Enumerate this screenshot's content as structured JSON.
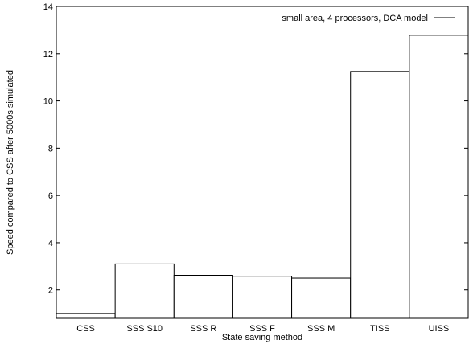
{
  "chart_data": {
    "type": "bar",
    "categories": [
      "CSS",
      "SSS S10",
      "SSS R",
      "SSS F",
      "SSS M",
      "TISS",
      "UISS"
    ],
    "series": [
      {
        "name": "small area, 4 processors, DCA model",
        "values": [
          1.0,
          3.1,
          2.62,
          2.58,
          2.5,
          11.25,
          12.78
        ]
      }
    ],
    "xlabel": "State saving method",
    "ylabel": "Speed compared to CSS after 5000s simulated",
    "ylim": [
      0.8,
      14
    ],
    "yticks": [
      2,
      4,
      6,
      8,
      10,
      12,
      14
    ],
    "grid": false,
    "legend_position": "top-right",
    "colors": {
      "bar_fill": "#ffffff",
      "stroke": "#000000"
    }
  }
}
